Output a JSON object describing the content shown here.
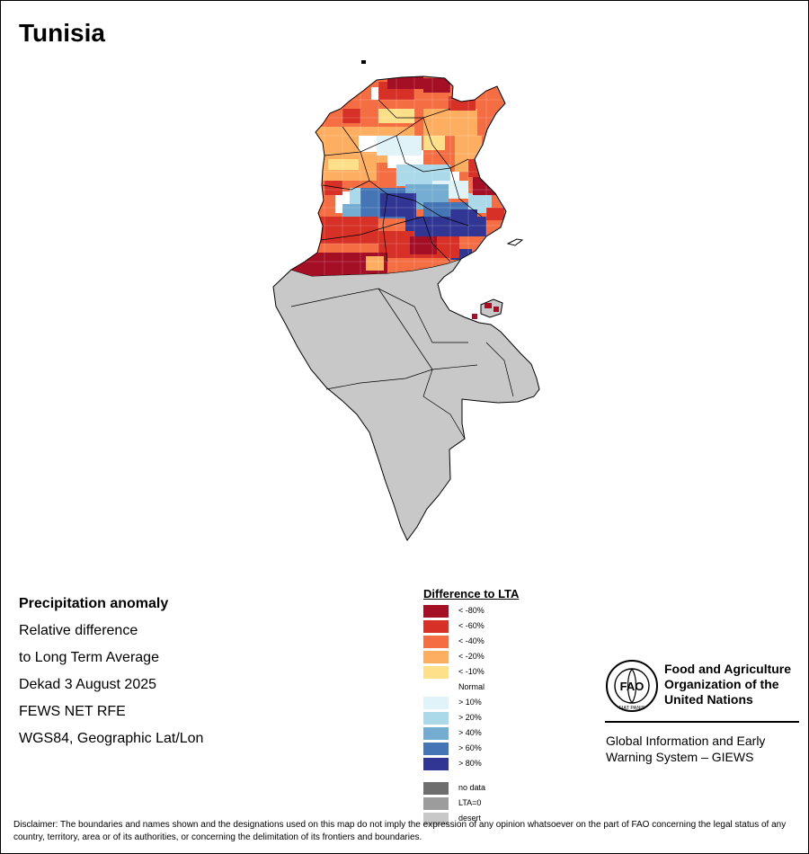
{
  "map": {
    "title": "Tunisia"
  },
  "info": {
    "heading": "Precipitation anomaly",
    "line1": "Relative difference",
    "line2": "to Long Term Average",
    "period": "Dekad 3 August 2025",
    "source": "FEWS NET RFE",
    "projection": "WGS84, Geographic Lat/Lon"
  },
  "legend": {
    "title": "Difference to LTA",
    "items": [
      {
        "label": "< -80%",
        "color": "#a50f26"
      },
      {
        "label": "< -60%",
        "color": "#d73027"
      },
      {
        "label": "< -40%",
        "color": "#f46d43"
      },
      {
        "label": "< -20%",
        "color": "#fdae61"
      },
      {
        "label": "< -10%",
        "color": "#fee08b"
      },
      {
        "label": "Normal",
        "color": "#ffffff"
      },
      {
        "label": "> 10%",
        "color": "#e0f3f8"
      },
      {
        "label": "> 20%",
        "color": "#abd9e9"
      },
      {
        "label": "> 40%",
        "color": "#74add1"
      },
      {
        "label": "> 60%",
        "color": "#4575b4"
      },
      {
        "label": "> 80%",
        "color": "#313695"
      }
    ],
    "extras": [
      {
        "label": "no data",
        "color": "#6e6e6e"
      },
      {
        "label": "LTA=0",
        "color": "#9c9c9c"
      },
      {
        "label": "desert",
        "color": "#c8c8c8"
      }
    ]
  },
  "branding": {
    "logo_text": "FAO",
    "logo_motto": "FIAT PANIS",
    "org_line1": "Food and Agriculture",
    "org_line2": "Organization of the",
    "org_line3": "United Nations",
    "system_line1": "Global Information and Early",
    "system_line2": "Warning System – GIEWS"
  },
  "disclaimer": "Disclaimer: The boundaries and names shown and the designations used on this map do not imply the expression of any opinion whatsoever on the part of FAO concerning the legal status of any country, territory, area or of its authorities, or concerning the delimitation of its frontiers and boundaries."
}
